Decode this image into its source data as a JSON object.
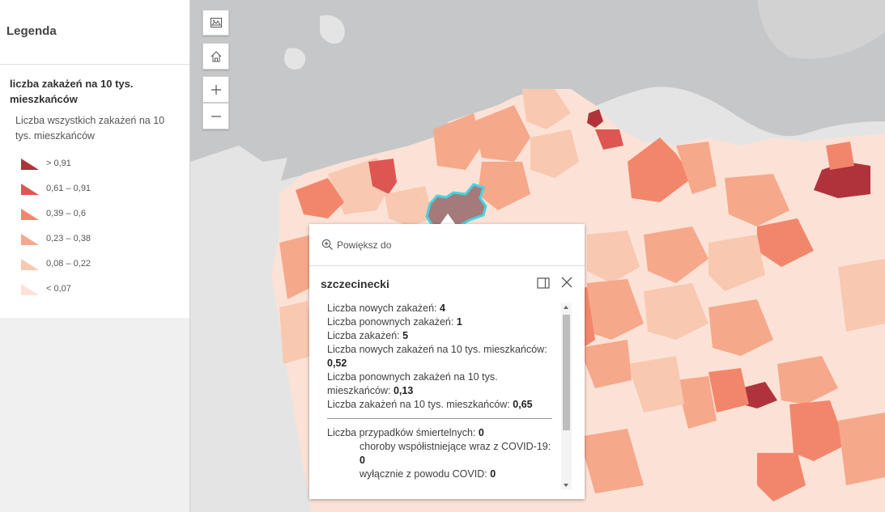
{
  "legend": {
    "title": "Legenda",
    "layer_title": "liczba zakażeń na 10 tys. mieszkańców",
    "field_label": "Liczba wszystkich zakażeń na 10 tys. mieszkańców",
    "classes": [
      {
        "label": "> 0,91",
        "color": "#b0333b"
      },
      {
        "label": "0,61 – 0,91",
        "color": "#dd5652"
      },
      {
        "label": "0,39 – 0,6",
        "color": "#f2866b"
      },
      {
        "label": "0,23 – 0,38",
        "color": "#f6a88a"
      },
      {
        "label": "0,08 – 0,22",
        "color": "#f9c8b0"
      },
      {
        "label": "< 0,07",
        "color": "#fce2d6"
      }
    ]
  },
  "map_controls": {
    "basemap_icon": "basemap-gallery-icon",
    "home_icon": "home-icon",
    "zoom_in_icon": "plus-icon",
    "zoom_out_icon": "minus-icon"
  },
  "popup": {
    "zoom_to_label": "Powiększ do",
    "title": "szczecinecki",
    "rows": [
      {
        "label": "Liczba nowych zakażeń:",
        "value": "4"
      },
      {
        "label": "Liczba ponownych zakażeń:",
        "value": "1"
      },
      {
        "label": "Liczba zakażeń:",
        "value": "5"
      },
      {
        "label": "Liczba nowych zakażeń na 10 tys. mieszkańców:",
        "value": "0,52"
      },
      {
        "label": "Liczba ponownych zakażeń na 10 tys. mieszkańców:",
        "value": "0,13"
      },
      {
        "label": "Liczba zakażeń na 10 tys. mieszkańców:",
        "value": "0,65"
      }
    ],
    "deaths": {
      "label": "Liczba przypadków śmiertelnych:",
      "value": "0",
      "comorbid_label": "choroby współistniejące wraz z COVID-19:",
      "comorbid_value": "0",
      "covid_only_label": "wyłącznie z powodu COVID:",
      "covid_only_value": "0"
    }
  },
  "colors": {
    "sea": "#c5c6c7",
    "land_bg": "#e4e4e4",
    "highlight": "#46d3e0",
    "selected_fill": "#a57a7a"
  }
}
